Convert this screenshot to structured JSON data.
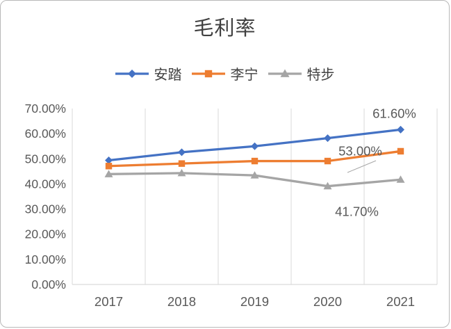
{
  "chart": {
    "title": "毛利率"
  },
  "chart_data": {
    "type": "line",
    "title": "毛利率",
    "xlabel": "",
    "ylabel": "",
    "categories": [
      "2017",
      "2018",
      "2019",
      "2020",
      "2021"
    ],
    "series": [
      {
        "name": "安踏",
        "color": "#4472C4",
        "marker": "diamond",
        "values": [
          49.4,
          52.6,
          55.0,
          58.2,
          61.6
        ]
      },
      {
        "name": "李宁",
        "color": "#ED7D31",
        "marker": "square",
        "values": [
          47.1,
          48.1,
          49.1,
          49.1,
          53.0
        ]
      },
      {
        "name": "特步",
        "color": "#A5A5A5",
        "marker": "triangle",
        "values": [
          43.9,
          44.3,
          43.4,
          39.1,
          41.7
        ]
      }
    ],
    "ylim": [
      0,
      70
    ],
    "ytick_step": 10,
    "ytick_labels": [
      "0.00%",
      "10.00%",
      "20.00%",
      "30.00%",
      "40.00%",
      "50.00%",
      "60.00%",
      "70.00%"
    ],
    "data_labels": [
      {
        "series_index": 0,
        "category": "2021",
        "text": "61.60%"
      },
      {
        "series_index": 1,
        "category": "2021",
        "text": "53.00%",
        "leader_line": true
      },
      {
        "series_index": 2,
        "category": "2021",
        "text": "41.70%"
      }
    ],
    "gridlines": "vertical",
    "legend_position": "top",
    "gridline_color": "#D9D9D9",
    "axis_text_color": "#595959"
  }
}
